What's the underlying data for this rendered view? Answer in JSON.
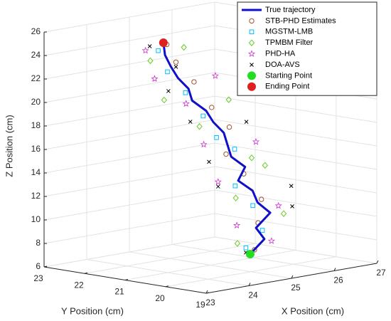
{
  "chart_data": {
    "type": "scatter3d",
    "xlabel": "X Position (cm)",
    "ylabel": "Y Position (cm)",
    "zlabel": "Z Position (cm)",
    "xlim": [
      23,
      27
    ],
    "xticks": [
      23,
      24,
      25,
      26,
      27
    ],
    "ylim": [
      19,
      23
    ],
    "yticks": [
      19,
      20,
      21,
      22,
      23
    ],
    "zlim": [
      6,
      26
    ],
    "zticks": [
      6,
      8,
      10,
      12,
      14,
      16,
      18,
      20,
      22,
      24,
      26
    ],
    "grid": true,
    "legend": "upper right",
    "series": [
      {
        "name": "True trajectory",
        "color": "#1010c8",
        "marker": "line",
        "x": [
          25.4,
          25.79,
          25.65,
          26.05,
          25.81,
          25.75,
          25.47,
          25.69,
          25.42,
          25.39,
          25.37,
          25.18,
          25.07,
          24.8,
          24.77,
          24.58,
          24.48,
          24.4,
          24.42
        ],
        "y": [
          20.44,
          20.5,
          20.56,
          20.63,
          20.69,
          20.75,
          20.81,
          20.87,
          20.93,
          20.99,
          21.06,
          21.12,
          21.18,
          21.24,
          21.3,
          21.36,
          21.43,
          21.49,
          21.55
        ],
        "z": [
          7,
          8,
          9,
          10,
          11,
          12,
          13,
          14,
          15,
          16,
          17,
          18,
          19,
          20,
          21,
          22,
          23,
          24,
          25
        ]
      },
      {
        "name": "STB-PHD Estimates",
        "color": "#a0522d",
        "marker": "circle",
        "x": [
          25.5,
          25.7,
          25.9,
          25.6,
          25.3,
          25.5,
          25.2,
          24.9,
          24.6,
          24.5
        ],
        "y": [
          20.44,
          20.56,
          20.69,
          20.81,
          20.93,
          21.06,
          21.18,
          21.3,
          21.43,
          21.55
        ],
        "z": [
          7.3,
          9.4,
          11.2,
          13.5,
          15.3,
          17.4,
          19.2,
          21.5,
          23.3,
          24.8
        ]
      },
      {
        "name": "MGSTM-LMB",
        "color": "#00bfff",
        "marker": "square",
        "x": [
          25.3,
          25.8,
          25.7,
          25.4,
          25.5,
          25.2,
          25.0,
          24.7,
          24.4,
          24.3
        ],
        "y": [
          20.44,
          20.56,
          20.69,
          20.81,
          20.93,
          21.06,
          21.18,
          21.3,
          21.43,
          21.55
        ],
        "z": [
          7.6,
          8.7,
          10.8,
          12.6,
          15.6,
          16.7,
          18.6,
          20.7,
          22.6,
          24.4
        ]
      },
      {
        "name": "TPMBM Filter",
        "color": "#66cc22",
        "marker": "diamond",
        "x": [
          25.1,
          26.3,
          25.3,
          26.1,
          25.9,
          24.8,
          25.6,
          24.2,
          24.0,
          24.9
        ],
        "y": [
          20.44,
          20.56,
          20.69,
          20.81,
          20.93,
          21.06,
          21.18,
          21.3,
          21.43,
          21.55
        ],
        "z": [
          8.1,
          9.8,
          11.7,
          13.9,
          14.6,
          17.9,
          19.6,
          20.4,
          23.8,
          24.3
        ]
      },
      {
        "name": "PHD-HA",
        "color": "#cc33cc",
        "marker": "star",
        "x": [
          25.9,
          25.2,
          26.3,
          25.0,
          26.0,
          24.9,
          24.6,
          25.4,
          24.1,
          24.0
        ],
        "y": [
          20.44,
          20.56,
          20.69,
          20.81,
          20.93,
          21.06,
          21.18,
          21.3,
          21.43,
          21.55
        ],
        "z": [
          7.8,
          9.5,
          10.4,
          13.2,
          15.9,
          16.3,
          19.9,
          21.7,
          22.2,
          24.6
        ]
      },
      {
        "name": "DOA-AVS",
        "color": "#000000",
        "marker": "x",
        "x": [
          25.3,
          26.5,
          26.6,
          25.0,
          24.9,
          25.9,
          24.7,
          24.3,
          24.6,
          24.1
        ],
        "y": [
          20.44,
          20.56,
          20.69,
          20.81,
          20.93,
          21.06,
          21.18,
          21.3,
          21.43,
          21.55
        ],
        "z": [
          7.2,
          10.3,
          11.9,
          12.8,
          14.9,
          17.6,
          18.3,
          21.1,
          22.9,
          24.9
        ]
      },
      {
        "name": "Starting Point",
        "color": "#22dd22",
        "marker": "dot",
        "x": [
          25.4
        ],
        "y": [
          20.44
        ],
        "z": [
          7
        ]
      },
      {
        "name": "Ending Point",
        "color": "#dd2020",
        "marker": "dot",
        "x": [
          24.42
        ],
        "y": [
          21.55
        ],
        "z": [
          25
        ]
      }
    ]
  }
}
